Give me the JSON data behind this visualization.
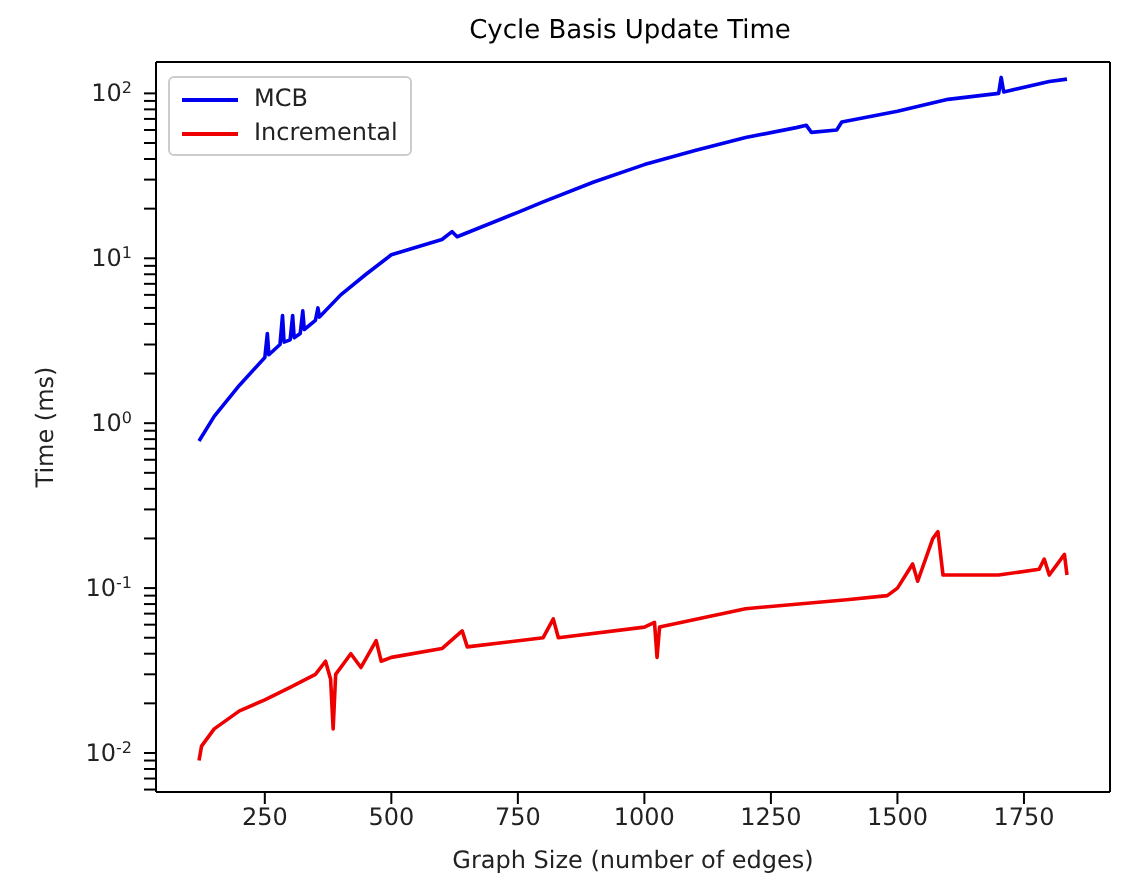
{
  "chart_data": {
    "type": "line",
    "title": "Cycle Basis Update Time",
    "xlabel": "Graph Size (number of edges)",
    "ylabel": "Time (ms)",
    "log": "y",
    "legend": "top left",
    "marker": "none",
    "line_style": "solid",
    "xlim": [
      35,
      1920
    ],
    "xticks": [
      250,
      500,
      750,
      1000,
      1250,
      1500,
      1750
    ],
    "ylim": [
      0.0058,
      155
    ],
    "yticks": [
      {
        "value": 0.01,
        "label": "10$^{-2}$"
      },
      {
        "value": 0.1,
        "label": "10$^{-1}$"
      },
      {
        "value": 1,
        "label": "10$^{0}$"
      },
      {
        "value": 10,
        "label": "10$^{1}$"
      },
      {
        "value": 100,
        "label": "10$^{2}$"
      },
      {
        "value": 0.006,
        "label": null
      },
      {
        "value": 0.007,
        "label": null
      },
      {
        "value": 0.008,
        "label": null
      },
      {
        "value": 0.009,
        "label": null
      },
      {
        "value": 0.02,
        "label": null
      },
      {
        "value": 0.03,
        "label": null
      },
      {
        "value": 0.04,
        "label": null
      },
      {
        "value": 0.05,
        "label": null
      },
      {
        "value": 0.06,
        "label": null
      },
      {
        "value": 0.07,
        "label": null
      },
      {
        "value": 0.08,
        "label": null
      },
      {
        "value": 0.09,
        "label": null
      },
      {
        "value": 0.2,
        "label": null
      },
      {
        "value": 0.3,
        "label": null
      },
      {
        "value": 0.4,
        "label": null
      },
      {
        "value": 0.5,
        "label": null
      },
      {
        "value": 0.6,
        "label": null
      },
      {
        "value": 0.7,
        "label": null
      },
      {
        "value": 0.8,
        "label": null
      },
      {
        "value": 0.9,
        "label": null
      },
      {
        "value": 2,
        "label": null
      },
      {
        "value": 3,
        "label": null
      },
      {
        "value": 4,
        "label": null
      },
      {
        "value": 5,
        "label": null
      },
      {
        "value": 6,
        "label": null
      },
      {
        "value": 7,
        "label": null
      },
      {
        "value": 8,
        "label": null
      },
      {
        "value": 9,
        "label": null
      },
      {
        "value": 20,
        "label": null
      },
      {
        "value": 30,
        "label": null
      },
      {
        "value": 40,
        "label": null
      },
      {
        "value": 50,
        "label": null
      },
      {
        "value": 60,
        "label": null
      },
      {
        "value": 70,
        "label": null
      },
      {
        "value": 80,
        "label": null
      },
      {
        "value": 90,
        "label": null
      }
    ],
    "series": [
      {
        "name": "MCB",
        "color": "#0000ee",
        "x": [
          120,
          150,
          200,
          250,
          255,
          258,
          280,
          285,
          288,
          300,
          305,
          308,
          320,
          325,
          328,
          350,
          355,
          358,
          400,
          450,
          500,
          600,
          620,
          630,
          750,
          800,
          900,
          1000,
          1100,
          1200,
          1300,
          1320,
          1330,
          1380,
          1390,
          1500,
          1600,
          1700,
          1705,
          1710,
          1800,
          1835
        ],
        "values": [
          0.78,
          1.1,
          1.7,
          2.5,
          3.5,
          2.6,
          3.0,
          4.5,
          3.1,
          3.2,
          4.5,
          3.3,
          3.5,
          4.8,
          3.7,
          4.2,
          5.0,
          4.4,
          6,
          8,
          10.5,
          13,
          14.5,
          13.5,
          19,
          22,
          29,
          37,
          45,
          54,
          62,
          64,
          58,
          60,
          67,
          78,
          92,
          100,
          125,
          102,
          118,
          122
        ]
      },
      {
        "name": "Incremental",
        "color": "#ee0000",
        "x": [
          120,
          125,
          150,
          200,
          250,
          300,
          350,
          370,
          380,
          385,
          390,
          420,
          440,
          470,
          480,
          500,
          600,
          640,
          650,
          800,
          820,
          830,
          1000,
          1020,
          1025,
          1030,
          1200,
          1400,
          1480,
          1500,
          1530,
          1540,
          1570,
          1580,
          1590,
          1700,
          1780,
          1790,
          1800,
          1830,
          1835
        ],
        "values": [
          0.009,
          0.011,
          0.014,
          0.018,
          0.021,
          0.025,
          0.03,
          0.036,
          0.028,
          0.014,
          0.03,
          0.04,
          0.033,
          0.048,
          0.036,
          0.038,
          0.043,
          0.055,
          0.044,
          0.05,
          0.065,
          0.05,
          0.058,
          0.062,
          0.038,
          0.058,
          0.075,
          0.085,
          0.09,
          0.1,
          0.14,
          0.11,
          0.2,
          0.22,
          0.12,
          0.12,
          0.13,
          0.15,
          0.12,
          0.16,
          0.12
        ]
      }
    ]
  }
}
